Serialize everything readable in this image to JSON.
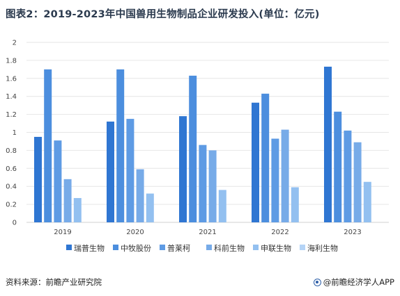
{
  "title": "图表2：2019-2023年中国兽用生物制品企业研发投入(单位：亿元)",
  "source_text": "资料来源：前瞻产业研究院",
  "brand_text": "@前瞻经济学人APP",
  "colors": {
    "series": [
      "#2f76d2",
      "#4c8ede",
      "#5e9be4",
      "#77abe8",
      "#93c0f0",
      "#b5d4f6"
    ],
    "title": "#2b3a4e",
    "grid": "#e6e6e6",
    "axis": "#d0d0d0"
  },
  "chart_data": {
    "type": "bar",
    "title": "图表2：2019-2023年中国兽用生物制品企业研发投入(单位：亿元)",
    "xlabel": "",
    "ylabel": "",
    "categories": [
      "2019",
      "2020",
      "2021",
      "2022",
      "2023"
    ],
    "ylim": [
      0,
      2
    ],
    "yticks": [
      "0",
      "0.2",
      "0.4",
      "0.6",
      "0.8",
      "1",
      "1.2",
      "1.4",
      "1.6",
      "1.8",
      "2"
    ],
    "grid": true,
    "legend_position": "bottom",
    "series": [
      {
        "name": "瑞普生物",
        "values": [
          0.95,
          1.12,
          1.18,
          1.33,
          1.73
        ]
      },
      {
        "name": "中牧股份",
        "values": [
          1.7,
          1.7,
          1.63,
          1.43,
          1.23
        ]
      },
      {
        "name": "普莱柯",
        "values": [
          0.91,
          1.15,
          0.86,
          0.93,
          1.02
        ]
      },
      {
        "name": "科前生物",
        "values": [
          0.48,
          0.59,
          0.8,
          1.03,
          0.89
        ]
      },
      {
        "name": "申联生物",
        "values": [
          0.27,
          0.32,
          0.36,
          0.39,
          0.45
        ]
      },
      {
        "name": "海利生物",
        "values": [
          null,
          null,
          null,
          null,
          null
        ]
      }
    ]
  }
}
